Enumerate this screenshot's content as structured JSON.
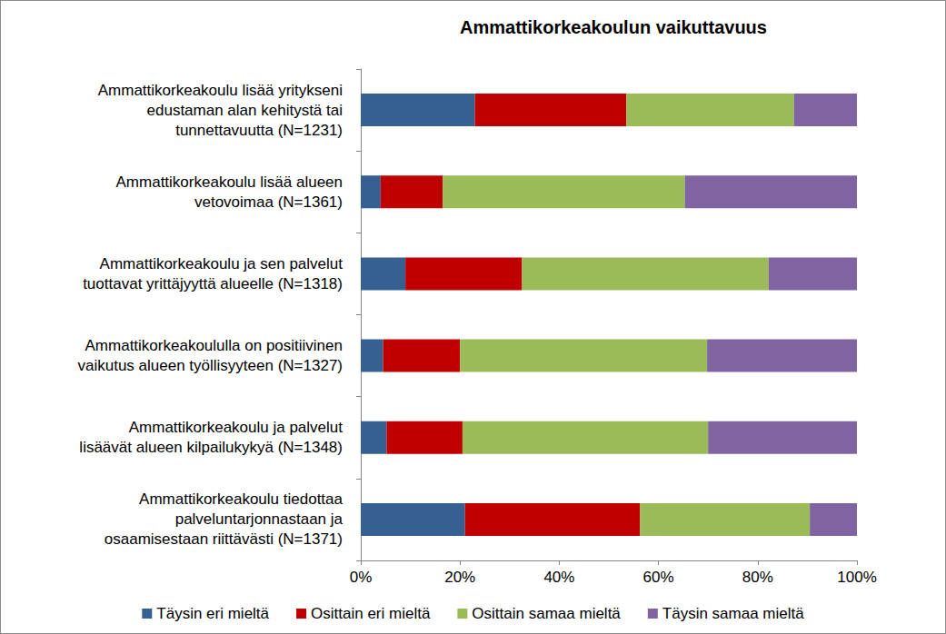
{
  "chart_data": {
    "type": "bar",
    "title": "Ammattikorkeakoulun vaikuttavuus",
    "orientation": "horizontal",
    "stacked": true,
    "grid": false,
    "legend": "bottom",
    "categories": [
      "Ammattikorkeakoulu lisää yritykseni\nedustaman alan kehitystä tai\ntunnettavuutta (N=1231)",
      "Ammattikorkeakoulu lisää alueen\nvetovoimaa (N=1361)",
      "Ammattikorkeakoulu ja sen palvelut\ntuottavat yrittäjyyttä alueelle (N=1318)",
      "Ammattikorkeakoululla on positiivinen\nvaikutus alueen työllisyyteen (N=1327)",
      "Ammattikorkeakoulu ja palvelut\nlisäävät alueen kilpailukykyä (N=1348)",
      "Ammattikorkeakoulu tiedottaa\npalveluntarjonnastaan ja\nosaamisestaan riittävästi (N=1371)"
    ],
    "series": [
      {
        "name": "Täysin eri mieltä",
        "color": "#376092",
        "values": [
          23,
          4,
          9,
          4.5,
          5.2,
          21
        ]
      },
      {
        "name": "Osittain eri mieltä",
        "color": "#c00000",
        "values": [
          30.5,
          12.5,
          23.5,
          15.5,
          15.3,
          35.3
        ]
      },
      {
        "name": "Osittain samaa mieltä",
        "color": "#9bbb59",
        "values": [
          33.8,
          48.8,
          49.7,
          49.8,
          49.5,
          34.2
        ]
      },
      {
        "name": "Täysin samaa mieltä",
        "color": "#8064a2",
        "values": [
          12.7,
          34.7,
          17.8,
          30.2,
          30,
          9.5
        ]
      }
    ],
    "xlim": [
      0,
      100
    ],
    "xticks": [
      {
        "value": 0,
        "label": "0%"
      },
      {
        "value": 20,
        "label": "20%"
      },
      {
        "value": 40,
        "label": "40%"
      },
      {
        "value": 60,
        "label": "60%"
      },
      {
        "value": 80,
        "label": "80%"
      },
      {
        "value": 100,
        "label": "100%"
      }
    ]
  }
}
